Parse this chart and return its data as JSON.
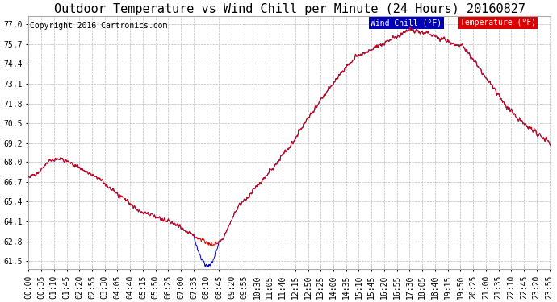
{
  "title": "Outdoor Temperature vs Wind Chill per Minute (24 Hours) 20160827",
  "copyright": "Copyright 2016 Cartronics.com",
  "ylabel_ticks": [
    61.5,
    62.8,
    64.1,
    65.4,
    66.7,
    68.0,
    69.2,
    70.5,
    71.8,
    73.1,
    74.4,
    75.7,
    77.0
  ],
  "ylim": [
    61.0,
    77.5
  ],
  "xlim": [
    0,
    1439
  ],
  "temp_color": "#dd0000",
  "wind_color": "#0000cc",
  "bg_color": "#ffffff",
  "grid_color": "#bbbbbb",
  "legend_wind_bg": "#0000bb",
  "legend_temp_bg": "#dd0000",
  "legend_wind_text": "Wind Chill (°F)",
  "legend_temp_text": "Temperature (°F)",
  "title_fontsize": 11,
  "copyright_fontsize": 7,
  "tick_fontsize": 7,
  "legend_fontsize": 7
}
